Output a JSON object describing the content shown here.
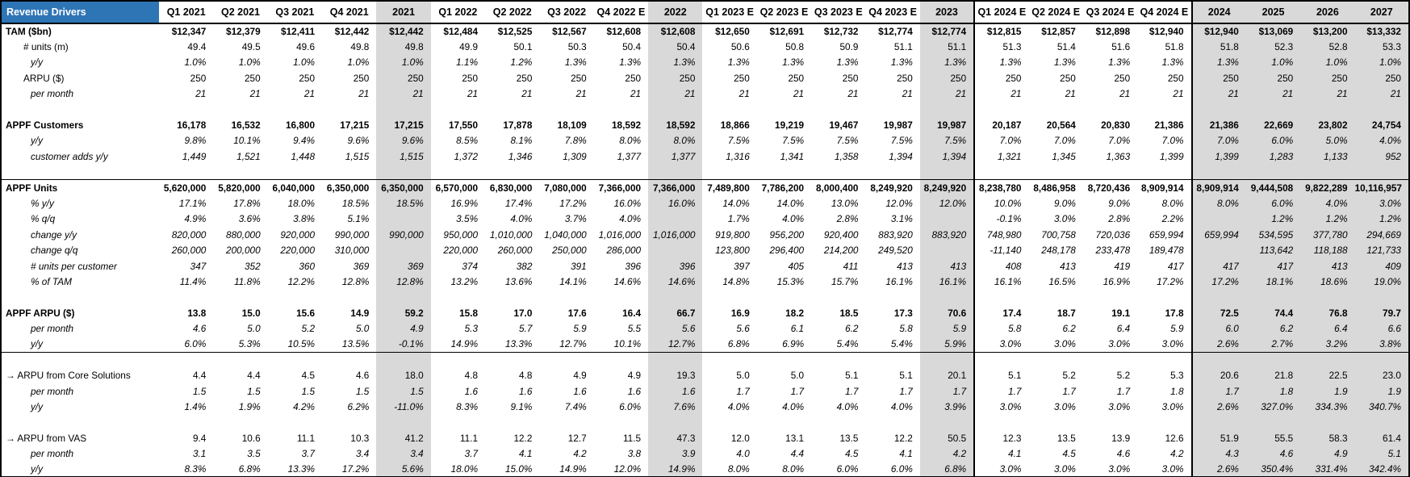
{
  "table": {
    "title": "Revenue Drivers",
    "colors": {
      "header_blue": "#2e75b6",
      "year_gray": "#d9d9d9"
    },
    "year_column_indexes": [
      4,
      9,
      14,
      19,
      20,
      21,
      22
    ],
    "block_border_indexes": [
      15,
      19
    ],
    "columns": [
      "Q1 2021",
      "Q2 2021",
      "Q3 2021",
      "Q4 2021",
      "2021",
      "Q1 2022",
      "Q2 2022",
      "Q3 2022",
      "Q4 2022 E",
      "2022",
      "Q1 2023 E",
      "Q2 2023 E",
      "Q3 2023 E",
      "Q4 2023 E",
      "2023",
      "Q1 2024 E",
      "Q2 2024 E",
      "Q3 2024 E",
      "Q4 2024 E",
      "2024",
      "2025",
      "2026",
      "2027"
    ],
    "rows": [
      {
        "label": "TAM ($bn)",
        "style": "sec",
        "indent": 0,
        "values": [
          "$12,347",
          "$12,379",
          "$12,411",
          "$12,442",
          "$12,442",
          "$12,484",
          "$12,525",
          "$12,567",
          "$12,608",
          "$12,608",
          "$12,650",
          "$12,691",
          "$12,732",
          "$12,774",
          "$12,774",
          "$12,815",
          "$12,857",
          "$12,898",
          "$12,940",
          "$12,940",
          "$13,069",
          "$13,200",
          "$13,332"
        ]
      },
      {
        "label": "# units (m)",
        "style": "plain",
        "indent": 1,
        "values": [
          "49.4",
          "49.5",
          "49.6",
          "49.8",
          "49.8",
          "49.9",
          "50.1",
          "50.3",
          "50.4",
          "50.4",
          "50.6",
          "50.8",
          "50.9",
          "51.1",
          "51.1",
          "51.3",
          "51.4",
          "51.6",
          "51.8",
          "51.8",
          "52.3",
          "52.8",
          "53.3"
        ]
      },
      {
        "label": "y/y",
        "style": "it",
        "indent": 2,
        "values": [
          "1.0%",
          "1.0%",
          "1.0%",
          "1.0%",
          "1.0%",
          "1.1%",
          "1.2%",
          "1.3%",
          "1.3%",
          "1.3%",
          "1.3%",
          "1.3%",
          "1.3%",
          "1.3%",
          "1.3%",
          "1.3%",
          "1.3%",
          "1.3%",
          "1.3%",
          "1.3%",
          "1.0%",
          "1.0%",
          "1.0%"
        ]
      },
      {
        "label": "ARPU ($)",
        "style": "plain",
        "indent": 1,
        "values": [
          "250",
          "250",
          "250",
          "250",
          "250",
          "250",
          "250",
          "250",
          "250",
          "250",
          "250",
          "250",
          "250",
          "250",
          "250",
          "250",
          "250",
          "250",
          "250",
          "250",
          "250",
          "250",
          "250"
        ]
      },
      {
        "label": "per month",
        "style": "it",
        "indent": 2,
        "values": [
          "21",
          "21",
          "21",
          "21",
          "21",
          "21",
          "21",
          "21",
          "21",
          "21",
          "21",
          "21",
          "21",
          "21",
          "21",
          "21",
          "21",
          "21",
          "21",
          "21",
          "21",
          "21",
          "21"
        ]
      },
      {
        "blank": true
      },
      {
        "label": "APPF Customers",
        "style": "sec",
        "indent": 0,
        "values": [
          "16,178",
          "16,532",
          "16,800",
          "17,215",
          "17,215",
          "17,550",
          "17,878",
          "18,109",
          "18,592",
          "18,592",
          "18,866",
          "19,219",
          "19,467",
          "19,987",
          "19,987",
          "20,187",
          "20,564",
          "20,830",
          "21,386",
          "21,386",
          "22,669",
          "23,802",
          "24,754"
        ]
      },
      {
        "label": "y/y",
        "style": "it",
        "indent": 2,
        "values": [
          "9.8%",
          "10.1%",
          "9.4%",
          "9.6%",
          "9.6%",
          "8.5%",
          "8.1%",
          "7.8%",
          "8.0%",
          "8.0%",
          "7.5%",
          "7.5%",
          "7.5%",
          "7.5%",
          "7.5%",
          "7.0%",
          "7.0%",
          "7.0%",
          "7.0%",
          "7.0%",
          "6.0%",
          "5.0%",
          "4.0%"
        ]
      },
      {
        "label": "customer adds y/y",
        "style": "it",
        "indent": 2,
        "values": [
          "1,449",
          "1,521",
          "1,448",
          "1,515",
          "1,515",
          "1,372",
          "1,346",
          "1,309",
          "1,377",
          "1,377",
          "1,316",
          "1,341",
          "1,358",
          "1,394",
          "1,394",
          "1,321",
          "1,345",
          "1,363",
          "1,399",
          "1,399",
          "1,283",
          "1,133",
          "952"
        ]
      },
      {
        "blank": true
      },
      {
        "label": "APPF Units",
        "style": "sec",
        "indent": 0,
        "line_above": true,
        "values": [
          "5,620,000",
          "5,820,000",
          "6,040,000",
          "6,350,000",
          "6,350,000",
          "6,570,000",
          "6,830,000",
          "7,080,000",
          "7,366,000",
          "7,366,000",
          "7,489,800",
          "7,786,200",
          "8,000,400",
          "8,249,920",
          "8,249,920",
          "8,238,780",
          "8,486,958",
          "8,720,436",
          "8,909,914",
          "8,909,914",
          "9,444,508",
          "9,822,289",
          "10,116,957"
        ]
      },
      {
        "label": "% y/y",
        "style": "it",
        "indent": 2,
        "values": [
          "17.1%",
          "17.8%",
          "18.0%",
          "18.5%",
          "18.5%",
          "16.9%",
          "17.4%",
          "17.2%",
          "16.0%",
          "16.0%",
          "14.0%",
          "14.0%",
          "13.0%",
          "12.0%",
          "12.0%",
          "10.0%",
          "9.0%",
          "9.0%",
          "8.0%",
          "8.0%",
          "6.0%",
          "4.0%",
          "3.0%"
        ]
      },
      {
        "label": "% q/q",
        "style": "it",
        "indent": 2,
        "values": [
          "4.9%",
          "3.6%",
          "3.8%",
          "5.1%",
          "",
          "3.5%",
          "4.0%",
          "3.7%",
          "4.0%",
          "",
          "1.7%",
          "4.0%",
          "2.8%",
          "3.1%",
          "",
          "-0.1%",
          "3.0%",
          "2.8%",
          "2.2%",
          "",
          "1.2%",
          "1.2%",
          "1.2%"
        ]
      },
      {
        "label": "change y/y",
        "style": "it",
        "indent": 2,
        "values": [
          "820,000",
          "880,000",
          "920,000",
          "990,000",
          "990,000",
          "950,000",
          "1,010,000",
          "1,040,000",
          "1,016,000",
          "1,016,000",
          "919,800",
          "956,200",
          "920,400",
          "883,920",
          "883,920",
          "748,980",
          "700,758",
          "720,036",
          "659,994",
          "659,994",
          "534,595",
          "377,780",
          "294,669"
        ]
      },
      {
        "label": "change q/q",
        "style": "it",
        "indent": 2,
        "values": [
          "260,000",
          "200,000",
          "220,000",
          "310,000",
          "",
          "220,000",
          "260,000",
          "250,000",
          "286,000",
          "",
          "123,800",
          "296,400",
          "214,200",
          "249,520",
          "",
          "-11,140",
          "248,178",
          "233,478",
          "189,478",
          "",
          "113,642",
          "118,188",
          "121,733"
        ]
      },
      {
        "label": "# units per customer",
        "style": "it",
        "indent": 2,
        "values": [
          "347",
          "352",
          "360",
          "369",
          "369",
          "374",
          "382",
          "391",
          "396",
          "396",
          "397",
          "405",
          "411",
          "413",
          "413",
          "408",
          "413",
          "419",
          "417",
          "417",
          "417",
          "413",
          "409"
        ]
      },
      {
        "label": "% of TAM",
        "style": "it",
        "indent": 2,
        "values": [
          "11.4%",
          "11.8%",
          "12.2%",
          "12.8%",
          "12.8%",
          "13.2%",
          "13.6%",
          "14.1%",
          "14.6%",
          "14.6%",
          "14.8%",
          "15.3%",
          "15.7%",
          "16.1%",
          "16.1%",
          "16.1%",
          "16.5%",
          "16.9%",
          "17.2%",
          "17.2%",
          "18.1%",
          "18.6%",
          "19.0%"
        ]
      },
      {
        "blank": true
      },
      {
        "label": "APPF ARPU ($)",
        "style": "sec",
        "indent": 0,
        "values": [
          "13.8",
          "15.0",
          "15.6",
          "14.9",
          "59.2",
          "15.8",
          "17.0",
          "17.6",
          "16.4",
          "66.7",
          "16.9",
          "18.2",
          "18.5",
          "17.3",
          "70.6",
          "17.4",
          "18.7",
          "19.1",
          "17.8",
          "72.5",
          "74.4",
          "76.8",
          "79.7"
        ]
      },
      {
        "label": "per month",
        "style": "it",
        "indent": 2,
        "values": [
          "4.6",
          "5.0",
          "5.2",
          "5.0",
          "4.9",
          "5.3",
          "5.7",
          "5.9",
          "5.5",
          "5.6",
          "5.6",
          "6.1",
          "6.2",
          "5.8",
          "5.9",
          "5.8",
          "6.2",
          "6.4",
          "5.9",
          "6.0",
          "6.2",
          "6.4",
          "6.6"
        ]
      },
      {
        "label": "y/y",
        "style": "it",
        "indent": 2,
        "line_below": true,
        "values": [
          "6.0%",
          "5.3%",
          "10.5%",
          "13.5%",
          "-0.1%",
          "14.9%",
          "13.3%",
          "12.7%",
          "10.1%",
          "12.7%",
          "6.8%",
          "6.9%",
          "5.4%",
          "5.4%",
          "5.9%",
          "3.0%",
          "3.0%",
          "3.0%",
          "3.0%",
          "2.6%",
          "2.7%",
          "3.2%",
          "3.8%"
        ]
      },
      {
        "blank": true
      },
      {
        "label": "→ ARPU from Core Solutions",
        "style": "plain",
        "indent": 0,
        "values": [
          "4.4",
          "4.4",
          "4.5",
          "4.6",
          "18.0",
          "4.8",
          "4.8",
          "4.9",
          "4.9",
          "19.3",
          "5.0",
          "5.0",
          "5.1",
          "5.1",
          "20.1",
          "5.1",
          "5.2",
          "5.2",
          "5.3",
          "20.6",
          "21.8",
          "22.5",
          "23.0"
        ]
      },
      {
        "label": "per month",
        "style": "it",
        "indent": 2,
        "values": [
          "1.5",
          "1.5",
          "1.5",
          "1.5",
          "1.5",
          "1.6",
          "1.6",
          "1.6",
          "1.6",
          "1.6",
          "1.7",
          "1.7",
          "1.7",
          "1.7",
          "1.7",
          "1.7",
          "1.7",
          "1.7",
          "1.8",
          "1.7",
          "1.8",
          "1.9",
          "1.9"
        ]
      },
      {
        "label": "y/y",
        "style": "it",
        "indent": 2,
        "values": [
          "1.4%",
          "1.9%",
          "4.2%",
          "6.2%",
          "-11.0%",
          "8.3%",
          "9.1%",
          "7.4%",
          "6.0%",
          "7.6%",
          "4.0%",
          "4.0%",
          "4.0%",
          "4.0%",
          "3.9%",
          "3.0%",
          "3.0%",
          "3.0%",
          "3.0%",
          "2.6%",
          "327.0%",
          "334.3%",
          "340.7%"
        ]
      },
      {
        "blank": true
      },
      {
        "label": "→ ARPU from VAS",
        "style": "plain",
        "indent": 0,
        "values": [
          "9.4",
          "10.6",
          "11.1",
          "10.3",
          "41.2",
          "11.1",
          "12.2",
          "12.7",
          "11.5",
          "47.3",
          "12.0",
          "13.1",
          "13.5",
          "12.2",
          "50.5",
          "12.3",
          "13.5",
          "13.9",
          "12.6",
          "51.9",
          "55.5",
          "58.3",
          "61.4"
        ]
      },
      {
        "label": "per month",
        "style": "it",
        "indent": 2,
        "values": [
          "3.1",
          "3.5",
          "3.7",
          "3.4",
          "3.4",
          "3.7",
          "4.1",
          "4.2",
          "3.8",
          "3.9",
          "4.0",
          "4.4",
          "4.5",
          "4.1",
          "4.2",
          "4.1",
          "4.5",
          "4.6",
          "4.2",
          "4.3",
          "4.6",
          "4.9",
          "5.1"
        ]
      },
      {
        "label": "y/y",
        "style": "it",
        "indent": 2,
        "values": [
          "8.3%",
          "6.8%",
          "13.3%",
          "17.2%",
          "5.6%",
          "18.0%",
          "15.0%",
          "14.9%",
          "12.0%",
          "14.9%",
          "8.0%",
          "8.0%",
          "6.0%",
          "6.0%",
          "6.8%",
          "3.0%",
          "3.0%",
          "3.0%",
          "3.0%",
          "2.6%",
          "350.4%",
          "331.4%",
          "342.4%"
        ]
      }
    ]
  }
}
